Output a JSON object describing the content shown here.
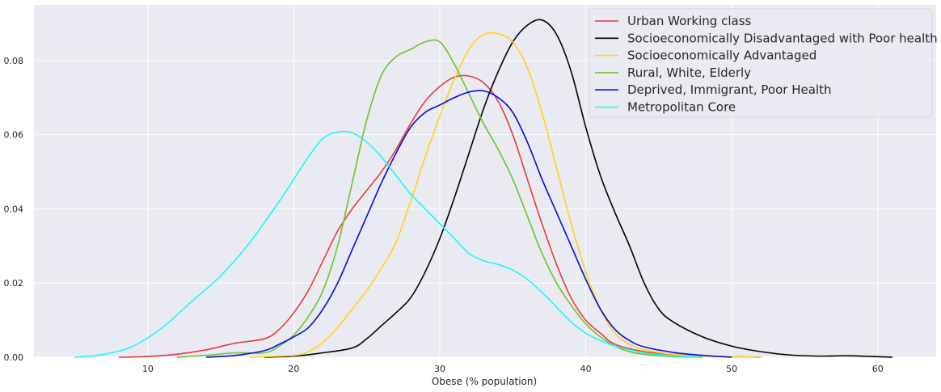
{
  "chart_data": {
    "type": "line",
    "title": "",
    "xlabel": "Obese (% population)",
    "ylabel": "",
    "xlim": [
      2.2,
      64
    ],
    "ylim": [
      0,
      0.095
    ],
    "xticks": [
      10,
      20,
      30,
      40,
      50,
      60
    ],
    "xtick_labels": [
      "10",
      "20",
      "30",
      "40",
      "50",
      "60"
    ],
    "yticks": [
      0.0,
      0.02,
      0.04,
      0.06,
      0.08
    ],
    "ytick_labels": [
      "0.00",
      "0.02",
      "0.04",
      "0.06",
      "0.08"
    ],
    "grid": true,
    "background": "#eaeaf2",
    "legend_position": "top-right",
    "series": [
      {
        "name": "Urban Working class",
        "color": "#e8393b",
        "x": [
          8,
          10,
          12,
          14,
          16,
          18,
          19,
          20,
          21,
          22,
          23,
          24,
          25,
          26,
          27,
          28,
          29,
          30,
          31,
          32,
          33,
          34,
          35,
          36,
          37,
          38,
          39,
          40,
          41,
          42,
          44,
          46,
          48,
          52
        ],
        "y": [
          0.0,
          0.0002,
          0.0008,
          0.002,
          0.0038,
          0.005,
          0.0075,
          0.012,
          0.018,
          0.026,
          0.034,
          0.04,
          0.045,
          0.05,
          0.056,
          0.063,
          0.069,
          0.073,
          0.0755,
          0.0758,
          0.074,
          0.069,
          0.06,
          0.048,
          0.036,
          0.025,
          0.016,
          0.01,
          0.0065,
          0.0035,
          0.0015,
          0.0008,
          0.0003,
          0.0
        ]
      },
      {
        "name": "Socioeconomically Disadvantaged with Poor health",
        "color": "#000000",
        "x": [
          18,
          20,
          22,
          24,
          25,
          26,
          27,
          28,
          29,
          30,
          31,
          32,
          33,
          34,
          35,
          36,
          37,
          38,
          39,
          40,
          41,
          42,
          43,
          44,
          45,
          46,
          48,
          50,
          52,
          54,
          56,
          58,
          61
        ],
        "y": [
          0.0,
          0.0003,
          0.0012,
          0.0025,
          0.005,
          0.0085,
          0.012,
          0.016,
          0.023,
          0.032,
          0.043,
          0.055,
          0.067,
          0.077,
          0.085,
          0.0895,
          0.0909,
          0.087,
          0.077,
          0.062,
          0.049,
          0.039,
          0.03,
          0.02,
          0.013,
          0.0095,
          0.0055,
          0.003,
          0.0015,
          0.0006,
          0.0003,
          0.0004,
          0.0
        ]
      },
      {
        "name": "Socioeconomically Advantaged",
        "color": "#ffd11a",
        "x": [
          17,
          20,
          21,
          22,
          23,
          24,
          25,
          26,
          27,
          28,
          29,
          30,
          31,
          32,
          33,
          34,
          35,
          36,
          37,
          38,
          39,
          40,
          41,
          42,
          43,
          44,
          46,
          48,
          52
        ],
        "y": [
          0.0,
          0.0005,
          0.0015,
          0.004,
          0.008,
          0.013,
          0.018,
          0.024,
          0.031,
          0.042,
          0.054,
          0.065,
          0.075,
          0.083,
          0.087,
          0.0872,
          0.085,
          0.078,
          0.066,
          0.051,
          0.036,
          0.023,
          0.013,
          0.0065,
          0.0035,
          0.002,
          0.0008,
          0.0003,
          0.0
        ]
      },
      {
        "name": "Rural, White, Elderly",
        "color": "#6ac42b",
        "x": [
          12,
          14,
          16,
          18,
          19,
          20,
          21,
          22,
          23,
          24,
          25,
          26,
          27,
          28,
          29,
          30,
          31,
          32,
          33,
          34,
          35,
          36,
          37,
          38,
          39,
          40,
          41,
          42,
          43,
          44,
          46,
          48
        ],
        "y": [
          0.0,
          0.0005,
          0.0012,
          0.0012,
          0.003,
          0.006,
          0.011,
          0.018,
          0.03,
          0.047,
          0.064,
          0.076,
          0.081,
          0.083,
          0.085,
          0.085,
          0.079,
          0.071,
          0.063,
          0.056,
          0.048,
          0.038,
          0.028,
          0.02,
          0.014,
          0.009,
          0.0055,
          0.003,
          0.0015,
          0.0008,
          0.0002,
          0.0
        ]
      },
      {
        "name": "Deprived, Immigrant, Poor Health",
        "color": "#0a0ad6",
        "x": [
          14,
          16,
          18,
          19,
          20,
          21,
          22,
          23,
          24,
          25,
          26,
          27,
          28,
          29,
          30,
          31,
          32,
          33,
          34,
          35,
          36,
          37,
          38,
          39,
          40,
          41,
          42,
          43,
          44,
          46,
          48,
          50
        ],
        "y": [
          0.0,
          0.0005,
          0.0018,
          0.0035,
          0.0055,
          0.008,
          0.013,
          0.02,
          0.029,
          0.038,
          0.047,
          0.055,
          0.062,
          0.066,
          0.068,
          0.07,
          0.0715,
          0.0718,
          0.07,
          0.066,
          0.058,
          0.048,
          0.039,
          0.03,
          0.021,
          0.013,
          0.0075,
          0.0045,
          0.0028,
          0.0013,
          0.0005,
          0.0
        ]
      },
      {
        "name": "Metropolitan Core",
        "color": "#1cf7f7",
        "x": [
          5,
          7,
          9,
          11,
          13,
          15,
          17,
          19,
          20,
          21,
          22,
          23,
          24,
          25,
          26,
          27,
          28,
          29,
          30,
          31,
          32,
          33,
          34,
          35,
          36,
          37,
          38,
          39,
          40,
          41,
          42,
          44,
          46,
          48
        ],
        "y": [
          0.0,
          0.0008,
          0.003,
          0.008,
          0.015,
          0.022,
          0.031,
          0.042,
          0.048,
          0.054,
          0.059,
          0.0607,
          0.0605,
          0.058,
          0.054,
          0.049,
          0.044,
          0.04,
          0.036,
          0.032,
          0.028,
          0.026,
          0.025,
          0.0235,
          0.021,
          0.0175,
          0.0135,
          0.0095,
          0.0065,
          0.0045,
          0.003,
          0.0012,
          0.0004,
          0.0
        ]
      }
    ]
  }
}
